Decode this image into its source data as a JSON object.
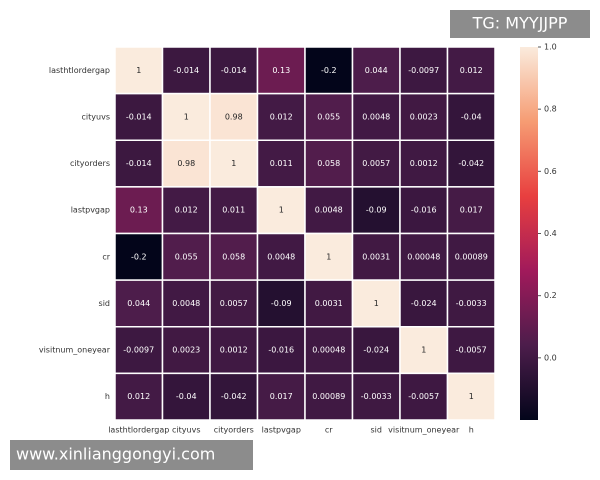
{
  "chart_data": {
    "type": "heatmap",
    "categories": [
      "lasthtlordergap",
      "cityuvs",
      "cityorders",
      "lastpvgap",
      "cr",
      "sid",
      "visitnum_oneyear",
      "h"
    ],
    "values": [
      [
        1,
        -0.014,
        -0.014,
        0.13,
        -0.2,
        0.044,
        -0.0097,
        0.012
      ],
      [
        -0.014,
        1,
        0.98,
        0.012,
        0.055,
        0.0048,
        0.0023,
        -0.04
      ],
      [
        -0.014,
        0.98,
        1,
        0.011,
        0.058,
        0.0057,
        0.0012,
        -0.042
      ],
      [
        0.13,
        0.012,
        0.011,
        1,
        0.0048,
        -0.09,
        -0.016,
        0.017
      ],
      [
        -0.2,
        0.055,
        0.058,
        0.0048,
        1,
        0.0031,
        0.00048,
        0.00089
      ],
      [
        0.044,
        0.0048,
        0.0057,
        -0.09,
        0.0031,
        1,
        -0.024,
        -0.0033
      ],
      [
        -0.0097,
        0.0023,
        0.0012,
        -0.016,
        0.00048,
        -0.024,
        1,
        -0.0057
      ],
      [
        0.012,
        -0.04,
        -0.042,
        0.017,
        0.00089,
        -0.0033,
        -0.0057,
        1
      ]
    ],
    "vlim": [
      -0.2,
      1
    ],
    "cticks": [
      {
        "value": 0,
        "label": "0.0"
      },
      0.2,
      0.4,
      0.6,
      0.8,
      {
        "value": 1,
        "label": "1.0"
      }
    ],
    "colormap": [
      "#03051a",
      "#4c1d4b",
      "#a11a5b",
      "#e83f3f",
      "#f69c73",
      "#faebdd"
    ],
    "watermarks": [
      "TG: MYYJJPP",
      "www.xinlianggongyi.com"
    ]
  }
}
